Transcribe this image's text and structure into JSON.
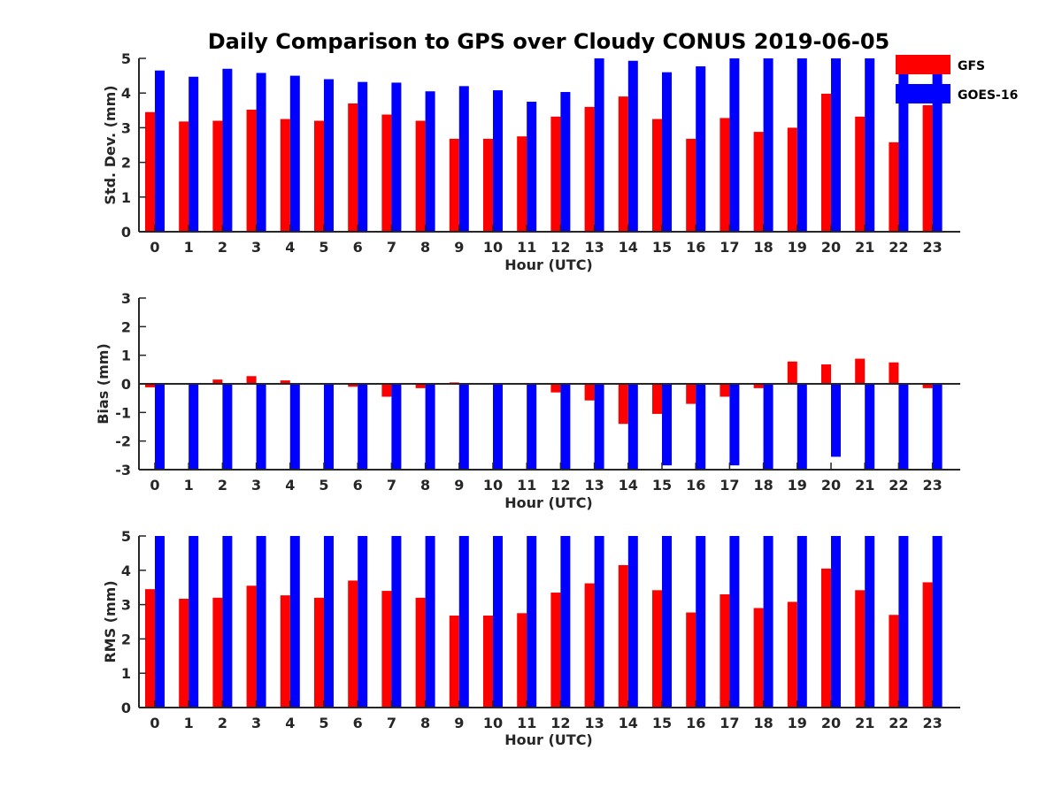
{
  "chart_data": {
    "title": "Daily Comparison to GPS over Cloudy CONUS 2019-06-05",
    "legend": {
      "placement": "top-right",
      "entries": [
        "GFS",
        "GOES-16"
      ]
    },
    "colors": {
      "GFS": "#ff0000",
      "GOES-16": "#0000ff",
      "axis": "#262626"
    },
    "panels": [
      {
        "type": "bar",
        "xlabel": "Hour (UTC)",
        "ylabel": "Std. Dev. (mm)",
        "ylim": [
          0,
          5
        ],
        "yticks": [
          "0",
          "1",
          "2",
          "3",
          "4",
          "5"
        ],
        "categories": [
          "0",
          "1",
          "2",
          "3",
          "4",
          "5",
          "6",
          "7",
          "8",
          "9",
          "10",
          "11",
          "12",
          "13",
          "14",
          "15",
          "16",
          "17",
          "18",
          "19",
          "20",
          "21",
          "22",
          "23"
        ],
        "grid": false,
        "series": [
          {
            "name": "GFS",
            "values": [
              3.45,
              3.18,
              3.2,
              3.52,
              3.25,
              3.2,
              3.7,
              3.38,
              3.2,
              2.68,
              2.68,
              2.75,
              3.32,
              3.6,
              3.9,
              3.25,
              2.68,
              3.28,
              2.88,
              3.0,
              3.98,
              3.32,
              2.58,
              3.65
            ]
          },
          {
            "name": "GOES-16",
            "values": [
              4.65,
              4.47,
              4.7,
              4.58,
              4.5,
              4.4,
              4.32,
              4.3,
              4.05,
              4.2,
              4.08,
              3.75,
              4.03,
              5.0,
              4.93,
              4.6,
              4.77,
              5.0,
              5.0,
              5.0,
              5.0,
              5.0,
              5.0,
              5.0
            ]
          }
        ]
      },
      {
        "type": "bar",
        "xlabel": "Hour (UTC)",
        "ylabel": "Bias (mm)",
        "ylim": [
          -3,
          3
        ],
        "yticks": [
          "-3",
          "-2",
          "-1",
          "0",
          "1",
          "2",
          "3"
        ],
        "categories": [
          "0",
          "1",
          "2",
          "3",
          "4",
          "5",
          "6",
          "7",
          "8",
          "9",
          "10",
          "11",
          "12",
          "13",
          "14",
          "15",
          "16",
          "17",
          "18",
          "19",
          "20",
          "21",
          "22",
          "23"
        ],
        "grid": false,
        "zero_line": true,
        "series": [
          {
            "name": "GFS",
            "values": [
              -0.12,
              -0.03,
              0.15,
              0.27,
              0.12,
              -0.02,
              -0.1,
              -0.45,
              -0.15,
              0.05,
              0.02,
              -0.02,
              -0.3,
              -0.58,
              -1.4,
              -1.05,
              -0.7,
              -0.45,
              -0.15,
              0.78,
              0.68,
              0.88,
              0.75,
              -0.15
            ]
          },
          {
            "name": "GOES-16",
            "values": [
              -3.0,
              -3.0,
              -3.0,
              -3.0,
              -3.0,
              -3.0,
              -3.0,
              -3.0,
              -3.0,
              -3.0,
              -3.0,
              -3.0,
              -3.0,
              -3.0,
              -3.0,
              -2.85,
              -3.0,
              -2.85,
              -3.0,
              -3.0,
              -2.55,
              -3.0,
              -3.0,
              -3.0
            ]
          }
        ]
      },
      {
        "type": "bar",
        "xlabel": "Hour (UTC)",
        "ylabel": "RMS (mm)",
        "ylim": [
          0,
          5
        ],
        "yticks": [
          "0",
          "1",
          "2",
          "3",
          "4",
          "5"
        ],
        "categories": [
          "0",
          "1",
          "2",
          "3",
          "4",
          "5",
          "6",
          "7",
          "8",
          "9",
          "10",
          "11",
          "12",
          "13",
          "14",
          "15",
          "16",
          "17",
          "18",
          "19",
          "20",
          "21",
          "22",
          "23"
        ],
        "grid": false,
        "series": [
          {
            "name": "GFS",
            "values": [
              3.45,
              3.17,
              3.2,
              3.55,
              3.27,
              3.2,
              3.7,
              3.4,
              3.2,
              2.68,
              2.68,
              2.75,
              3.35,
              3.62,
              4.15,
              3.42,
              2.77,
              3.3,
              2.9,
              3.08,
              4.05,
              3.42,
              2.7,
              3.65
            ]
          },
          {
            "name": "GOES-16",
            "values": [
              5.0,
              5.0,
              5.0,
              5.0,
              5.0,
              5.0,
              5.0,
              5.0,
              5.0,
              5.0,
              5.0,
              5.0,
              5.0,
              5.0,
              5.0,
              5.0,
              5.0,
              5.0,
              5.0,
              5.0,
              5.0,
              5.0,
              5.0,
              5.0
            ]
          }
        ]
      }
    ]
  }
}
